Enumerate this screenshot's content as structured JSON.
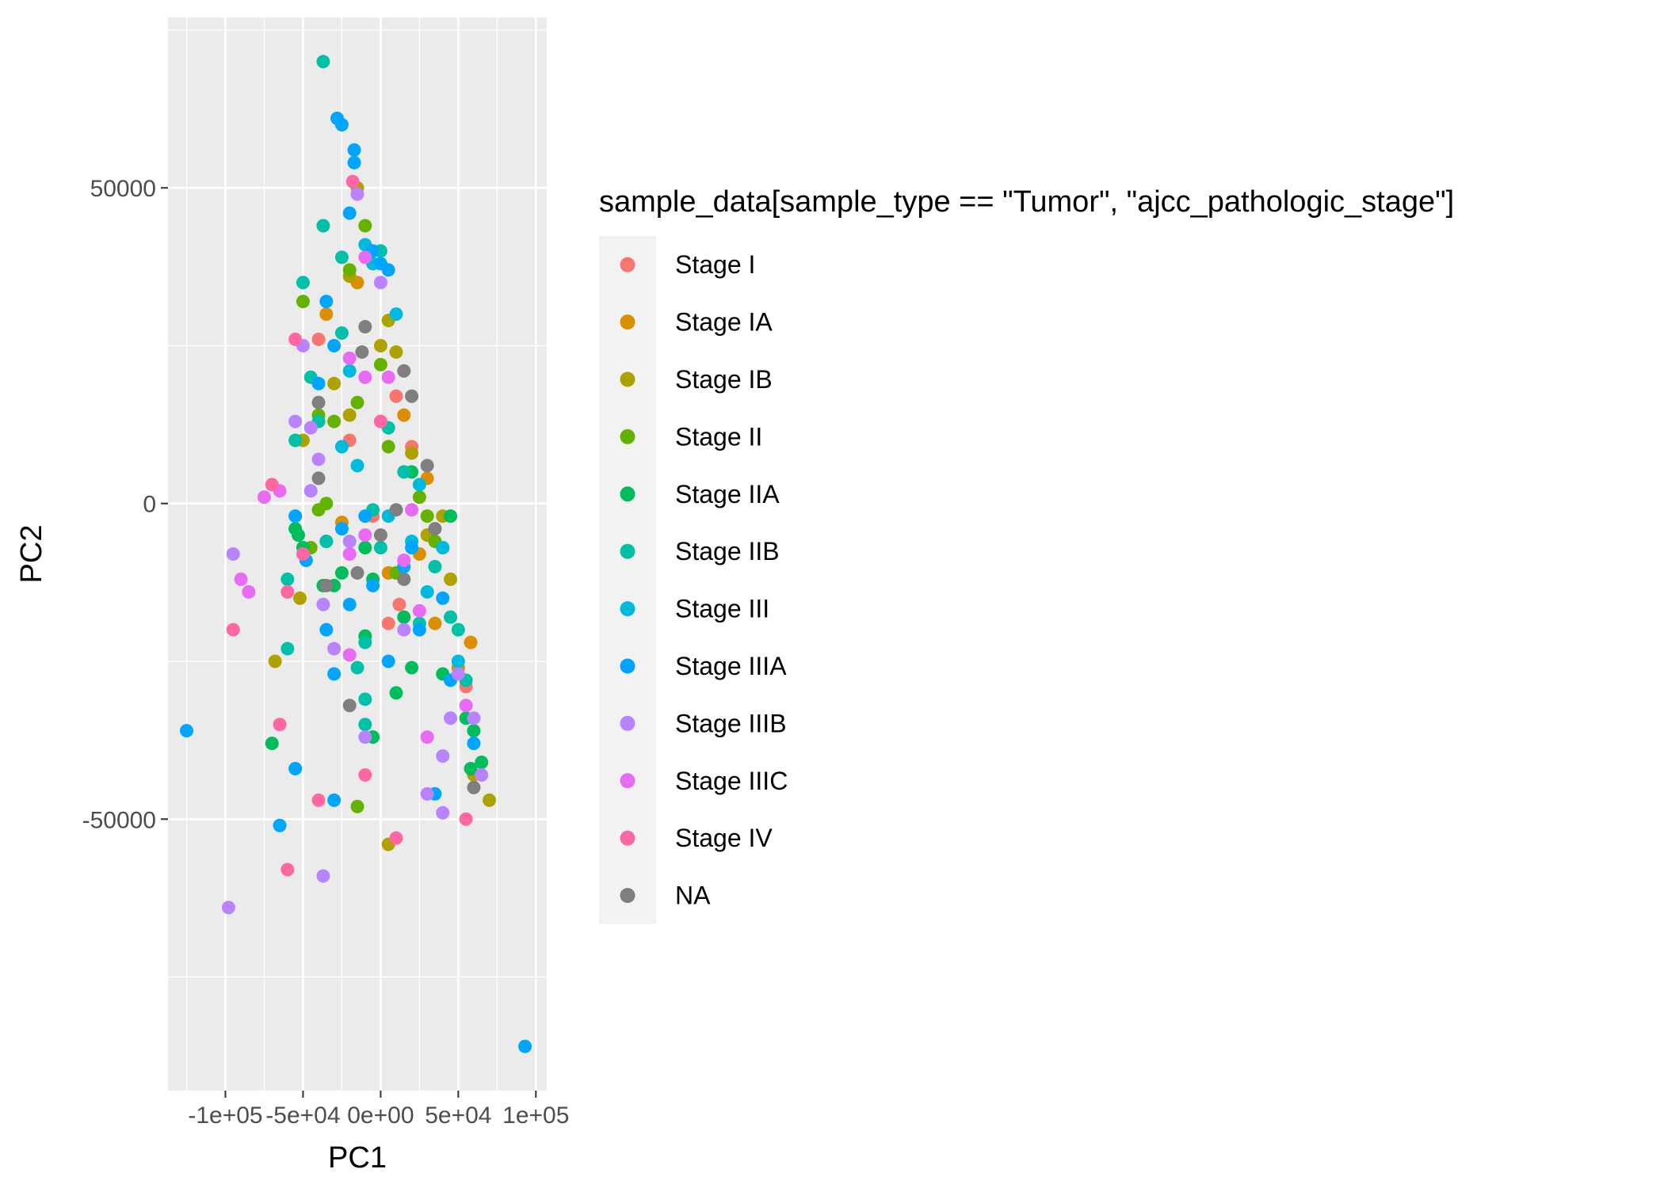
{
  "chart_data": {
    "type": "scatter",
    "title": "",
    "xlabel": "PC1",
    "ylabel": "PC2",
    "xlim": [
      -137000,
      107000
    ],
    "ylim": [
      -93000,
      77000
    ],
    "x_ticks": [
      -100000,
      -50000,
      0,
      50000,
      100000
    ],
    "x_tick_labels": [
      "-1e+05",
      "-5e+04",
      "0e+00",
      "5e+04",
      "1e+05"
    ],
    "y_ticks": [
      -50000,
      0,
      50000
    ],
    "y_tick_labels": [
      "-50000",
      "0",
      "50000"
    ],
    "grid": true,
    "legend": {
      "title": "sample_data[sample_type == \"Tumor\", \"ajcc_pathologic_stage\"]",
      "placement": "right"
    },
    "series": [
      {
        "name": "Stage I",
        "color": "#F8766D",
        "points": [
          [
            -40000,
            26000
          ],
          [
            0,
            13000
          ],
          [
            10000,
            17000
          ],
          [
            20000,
            9000
          ],
          [
            -5000,
            -2000
          ],
          [
            12000,
            -16000
          ],
          [
            5000,
            -19000
          ],
          [
            55000,
            -29000
          ],
          [
            -20000,
            10000
          ]
        ]
      },
      {
        "name": "Stage IA",
        "color": "#DB8E00",
        "points": [
          [
            -35000,
            30000
          ],
          [
            -25000,
            -3000
          ],
          [
            5000,
            -11000
          ],
          [
            30000,
            4000
          ],
          [
            35000,
            -19000
          ],
          [
            50000,
            -26000
          ],
          [
            58000,
            -22000
          ],
          [
            -15000,
            35000
          ],
          [
            15000,
            14000
          ],
          [
            25000,
            -8000
          ]
        ]
      },
      {
        "name": "Stage IB",
        "color": "#AEA200",
        "points": [
          [
            -15000,
            50000
          ],
          [
            -20000,
            36000
          ],
          [
            -30000,
            19000
          ],
          [
            -50000,
            10000
          ],
          [
            -52000,
            -15000
          ],
          [
            -68000,
            -25000
          ],
          [
            -20000,
            14000
          ],
          [
            5000,
            29000
          ],
          [
            10000,
            24000
          ],
          [
            30000,
            -5000
          ],
          [
            40000,
            -2000
          ],
          [
            45000,
            -12000
          ],
          [
            60000,
            -43000
          ],
          [
            70000,
            -47000
          ],
          [
            5000,
            -54000
          ],
          [
            -35000,
            -6000
          ],
          [
            0,
            25000
          ],
          [
            20000,
            8000
          ]
        ]
      },
      {
        "name": "Stage II",
        "color": "#64B200",
        "points": [
          [
            -10000,
            44000
          ],
          [
            -50000,
            32000
          ],
          [
            -40000,
            14000
          ],
          [
            -30000,
            13000
          ],
          [
            -45000,
            -7000
          ],
          [
            -40000,
            -1000
          ],
          [
            -35000,
            0
          ],
          [
            -15000,
            16000
          ],
          [
            0,
            22000
          ],
          [
            5000,
            9000
          ],
          [
            25000,
            1000
          ],
          [
            30000,
            -2000
          ],
          [
            -15000,
            -48000
          ],
          [
            -20000,
            37000
          ],
          [
            10000,
            -11000
          ],
          [
            35000,
            -6000
          ]
        ]
      },
      {
        "name": "Stage IIA",
        "color": "#00BD5C",
        "points": [
          [
            -55000,
            -4000
          ],
          [
            -53000,
            -5000
          ],
          [
            -50000,
            -7000
          ],
          [
            -37000,
            -13000
          ],
          [
            -30000,
            -13000
          ],
          [
            -25000,
            -11000
          ],
          [
            -10000,
            -7000
          ],
          [
            -5000,
            -12000
          ],
          [
            15000,
            -18000
          ],
          [
            20000,
            -26000
          ],
          [
            40000,
            -27000
          ],
          [
            55000,
            -34000
          ],
          [
            58000,
            -42000
          ],
          [
            65000,
            -41000
          ],
          [
            60000,
            -36000
          ],
          [
            -70000,
            -38000
          ],
          [
            -10000,
            -21000
          ],
          [
            10000,
            -30000
          ],
          [
            -5000,
            -37000
          ],
          [
            20000,
            5000
          ],
          [
            45000,
            -2000
          ]
        ]
      },
      {
        "name": "Stage IIB",
        "color": "#00C1A7",
        "points": [
          [
            -37000,
            70000
          ],
          [
            -37000,
            44000
          ],
          [
            -25000,
            39000
          ],
          [
            0,
            40000
          ],
          [
            -50000,
            35000
          ],
          [
            -45000,
            20000
          ],
          [
            -40000,
            13000
          ],
          [
            -55000,
            10000
          ],
          [
            -60000,
            -12000
          ],
          [
            -60000,
            -23000
          ],
          [
            -10000,
            -31000
          ],
          [
            -10000,
            -35000
          ],
          [
            -15000,
            -26000
          ],
          [
            -35000,
            -6000
          ],
          [
            -10000,
            -22000
          ],
          [
            25000,
            -19000
          ],
          [
            45000,
            -18000
          ],
          [
            50000,
            -20000
          ],
          [
            55000,
            -28000
          ],
          [
            35000,
            -10000
          ],
          [
            40000,
            -7000
          ],
          [
            5000,
            12000
          ],
          [
            -5000,
            -1000
          ],
          [
            0,
            -7000
          ],
          [
            15000,
            5000
          ],
          [
            -25000,
            27000
          ]
        ]
      },
      {
        "name": "Stage III",
        "color": "#00BADE",
        "points": [
          [
            -10000,
            41000
          ],
          [
            -5000,
            38000
          ],
          [
            -20000,
            21000
          ],
          [
            -25000,
            9000
          ],
          [
            20000,
            -6000
          ],
          [
            30000,
            -14000
          ],
          [
            40000,
            -7000
          ],
          [
            50000,
            -25000
          ],
          [
            -15000,
            6000
          ],
          [
            10000,
            30000
          ],
          [
            25000,
            3000
          ],
          [
            5000,
            -2000
          ]
        ]
      },
      {
        "name": "Stage IIIA",
        "color": "#00A5FF",
        "points": [
          [
            -28000,
            61000
          ],
          [
            -25000,
            60000
          ],
          [
            -17000,
            56000
          ],
          [
            -17000,
            54000
          ],
          [
            -20000,
            46000
          ],
          [
            -5000,
            40000
          ],
          [
            0,
            38000
          ],
          [
            5000,
            37000
          ],
          [
            -30000,
            25000
          ],
          [
            -40000,
            19000
          ],
          [
            -35000,
            32000
          ],
          [
            -55000,
            -2000
          ],
          [
            -48000,
            -9000
          ],
          [
            -35000,
            -20000
          ],
          [
            -30000,
            -27000
          ],
          [
            -25000,
            -4000
          ],
          [
            -20000,
            -16000
          ],
          [
            -5000,
            -13000
          ],
          [
            5000,
            -25000
          ],
          [
            20000,
            -7000
          ],
          [
            40000,
            -15000
          ],
          [
            45000,
            -28000
          ],
          [
            60000,
            -38000
          ],
          [
            -125000,
            -36000
          ],
          [
            -65000,
            -51000
          ],
          [
            -55000,
            -42000
          ],
          [
            -30000,
            -47000
          ],
          [
            -10000,
            -2000
          ],
          [
            15000,
            -10000
          ],
          [
            25000,
            -20000
          ],
          [
            35000,
            -46000
          ],
          [
            93000,
            -86000
          ]
        ]
      },
      {
        "name": "Stage IIIB",
        "color": "#B983FF",
        "points": [
          [
            -15000,
            49000
          ],
          [
            -50000,
            25000
          ],
          [
            -55000,
            13000
          ],
          [
            -45000,
            12000
          ],
          [
            -40000,
            7000
          ],
          [
            -45000,
            2000
          ],
          [
            -95000,
            -8000
          ],
          [
            -20000,
            -6000
          ],
          [
            -30000,
            -23000
          ],
          [
            -37000,
            -16000
          ],
          [
            -10000,
            -37000
          ],
          [
            40000,
            -40000
          ],
          [
            45000,
            -34000
          ],
          [
            50000,
            -27000
          ],
          [
            60000,
            -34000
          ],
          [
            65000,
            -43000
          ],
          [
            -98000,
            -64000
          ],
          [
            -37000,
            -59000
          ],
          [
            40000,
            -49000
          ],
          [
            30000,
            -46000
          ],
          [
            0,
            35000
          ],
          [
            15000,
            -20000
          ]
        ]
      },
      {
        "name": "Stage IIIC",
        "color": "#E76BF3",
        "points": [
          [
            -10000,
            39000
          ],
          [
            -20000,
            23000
          ],
          [
            -10000,
            20000
          ],
          [
            -90000,
            -12000
          ],
          [
            -85000,
            -14000
          ],
          [
            -60000,
            -14000
          ],
          [
            -65000,
            2000
          ],
          [
            -75000,
            1000
          ],
          [
            -20000,
            -8000
          ],
          [
            -10000,
            -5000
          ],
          [
            -20000,
            -24000
          ],
          [
            15000,
            -9000
          ],
          [
            25000,
            -17000
          ],
          [
            30000,
            -37000
          ],
          [
            55000,
            -32000
          ],
          [
            5000,
            20000
          ],
          [
            20000,
            -1000
          ]
        ]
      },
      {
        "name": "Stage IV",
        "color": "#FF67A4",
        "points": [
          [
            -18000,
            51000
          ],
          [
            -55000,
            26000
          ],
          [
            -70000,
            3000
          ],
          [
            -95000,
            -20000
          ],
          [
            -60000,
            -14000
          ],
          [
            -50000,
            -8000
          ],
          [
            -65000,
            -35000
          ],
          [
            -60000,
            -58000
          ],
          [
            -40000,
            -47000
          ],
          [
            10000,
            -53000
          ],
          [
            55000,
            -50000
          ],
          [
            -10000,
            -43000
          ],
          [
            0,
            13000
          ]
        ]
      },
      {
        "name": "NA",
        "color": "#7F7F7F",
        "points": [
          [
            -10000,
            28000
          ],
          [
            -12000,
            24000
          ],
          [
            15000,
            21000
          ],
          [
            20000,
            17000
          ],
          [
            -40000,
            16000
          ],
          [
            -40000,
            4000
          ],
          [
            -35000,
            -13000
          ],
          [
            -20000,
            -32000
          ],
          [
            -15000,
            -11000
          ],
          [
            15000,
            -12000
          ],
          [
            0,
            -5000
          ],
          [
            35000,
            -4000
          ],
          [
            30000,
            6000
          ],
          [
            60000,
            -45000
          ],
          [
            10000,
            -1000
          ]
        ]
      }
    ]
  }
}
